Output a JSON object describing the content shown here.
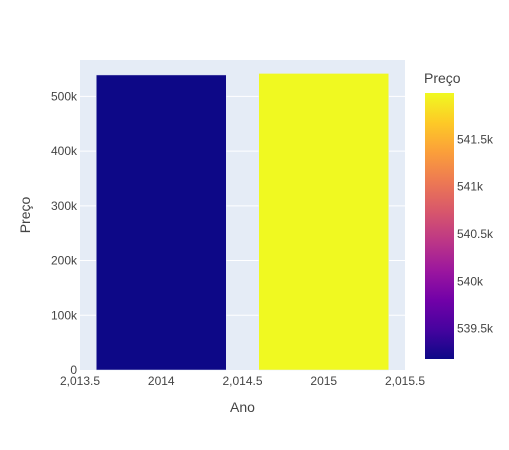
{
  "chart_data": {
    "type": "bar",
    "title": "",
    "xlabel": "Ano",
    "ylabel": "Preço",
    "x": [
      2014,
      2015
    ],
    "values": [
      539180,
      541990
    ],
    "xlim": [
      2013.5,
      2015.5
    ],
    "ylim": [
      0,
      566500
    ],
    "xticks": [
      {
        "value": 2013.5,
        "label": "2,013.5"
      },
      {
        "value": 2014,
        "label": "2014"
      },
      {
        "value": 2014.5,
        "label": "2,014.5"
      },
      {
        "value": 2015,
        "label": "2015"
      },
      {
        "value": 2015.5,
        "label": "2,015.5"
      }
    ],
    "yticks": [
      {
        "value": 0,
        "label": "0"
      },
      {
        "value": 100000,
        "label": "100k"
      },
      {
        "value": 200000,
        "label": "200k"
      },
      {
        "value": 300000,
        "label": "300k"
      },
      {
        "value": 400000,
        "label": "400k"
      },
      {
        "value": 500000,
        "label": "500k"
      }
    ],
    "bar_width": 0.8,
    "grid": true,
    "legend": "none",
    "colorbar": {
      "title": "Preço",
      "range": [
        539180,
        541990
      ],
      "colorscale": [
        "#0d0887",
        "#46039f",
        "#7201a8",
        "#9c179e",
        "#bd3786",
        "#d8576b",
        "#ed7953",
        "#fb9f3a",
        "#fdca26",
        "#f0f921"
      ],
      "ticks": [
        {
          "value": 539500,
          "label": "539.5k"
        },
        {
          "value": 540000,
          "label": "540k"
        },
        {
          "value": 540500,
          "label": "540.5k"
        },
        {
          "value": 541000,
          "label": "541k"
        },
        {
          "value": 541500,
          "label": "541.5k"
        }
      ]
    },
    "colors": {
      "plot_background": "#e5ecf6",
      "gridline": "#ffffff",
      "text": "#444444"
    }
  }
}
